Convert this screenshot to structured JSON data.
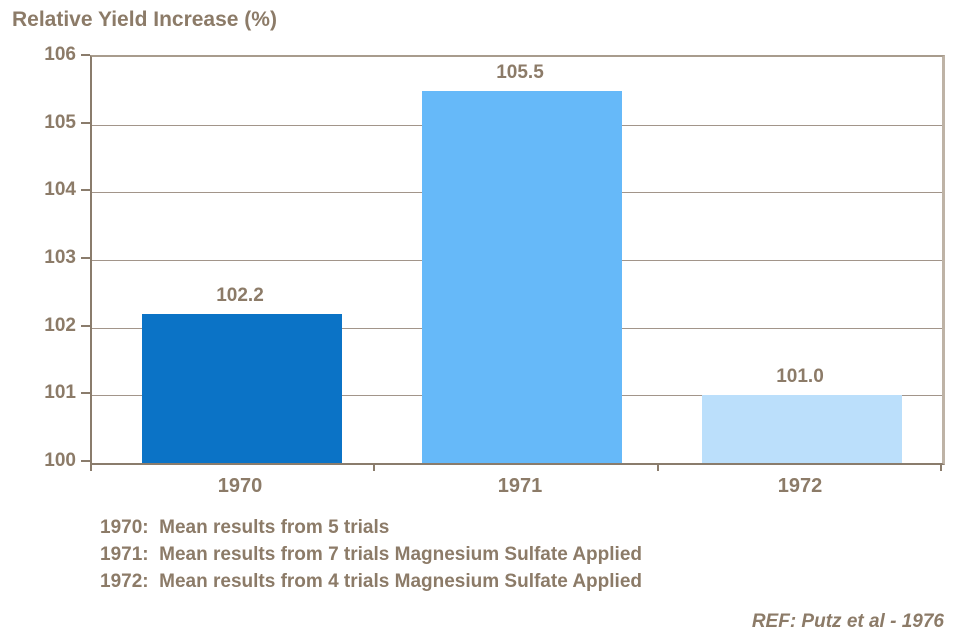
{
  "title": "Relative Yield Increase (%)",
  "notes": {
    "lines": [
      "1970:  Mean results from 5 trials",
      "1971:  Mean results from 7 trials Magnesium Sulfate Applied",
      "1972:  Mean results from 4 trials Magnesium Sulfate Applied"
    ]
  },
  "footer": {
    "ref": "REF: Putz et al - 1976"
  },
  "colors": {
    "text": "#8c7b68",
    "axis": "#8a7c6c",
    "grid": "#a2958a",
    "plot_border_right": "#beb3a6",
    "bar_1970": "#0b73c6",
    "bar_1971": "#66b9f9",
    "bar_1972": "#bbdffb"
  },
  "chart_data": {
    "type": "bar",
    "title": "Relative Yield Increase (%)",
    "categories": [
      "1970",
      "1971",
      "1972"
    ],
    "values": [
      102.2,
      105.5,
      101.0
    ],
    "value_labels": [
      "102.2",
      "105.5",
      "101.0"
    ],
    "bar_colors": [
      "#0b73c6",
      "#66b9f9",
      "#bbdffb"
    ],
    "xlabel": "",
    "ylabel": "Relative Yield Increase (%)",
    "ylim": [
      100,
      106
    ],
    "ytick_step": 1,
    "ytick_labels": [
      "100",
      "101",
      "102",
      "103",
      "104",
      "105",
      "106"
    ],
    "grid": "horizontal",
    "legend": "none",
    "annotations": [
      "1970:  Mean results from 5 trials",
      "1971:  Mean results from 7 trials Magnesium Sulfate Applied",
      "1972:  Mean results from 4 trials Magnesium Sulfate Applied",
      "REF: Putz et al - 1976"
    ]
  }
}
